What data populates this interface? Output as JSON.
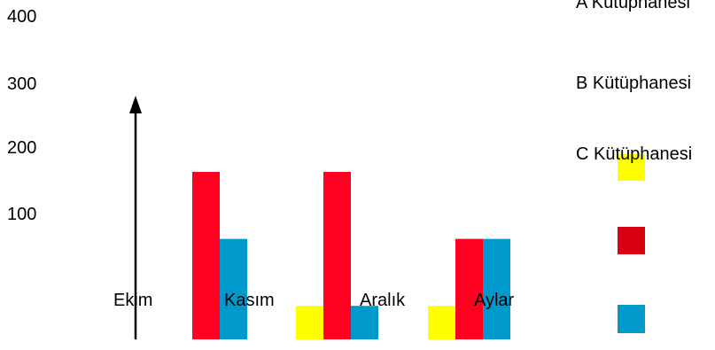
{
  "chart_data": {
    "type": "bar",
    "categories": [
      "Ekim",
      "Kasım",
      "Aralık"
    ],
    "axis_title": "Aylar",
    "y_ticks": [
      "100",
      "200",
      "300",
      "400"
    ],
    "series": [
      {
        "name": "A Kütüphanesi",
        "color": "#FFFF00",
        "values": [
          0,
          50,
          50
        ]
      },
      {
        "name": "B Kütüphanesi",
        "color": "#FF0020",
        "values": [
          250,
          250,
          150
        ]
      },
      {
        "name": "C Kütüphanesi",
        "color": "#0099CC",
        "values": [
          150,
          50,
          150
        ]
      }
    ],
    "legend_swatch_colors": [
      "#FFFF00",
      "#D90012",
      "#0099CC"
    ],
    "legend": "right",
    "grid": false
  }
}
